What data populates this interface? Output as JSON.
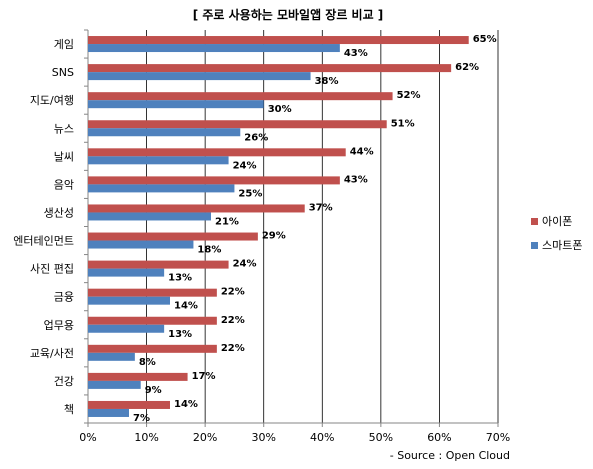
{
  "chart_data": {
    "type": "bar",
    "orientation": "horizontal",
    "title": "[ 주로 사용하는 모바일앱 장르 비교 ]",
    "source": "- Source : Open Cloud",
    "categories": [
      "게임",
      "SNS",
      "지도/여행",
      "뉴스",
      "날씨",
      "음악",
      "생산성",
      "엔터테인먼트",
      "사진 편집",
      "금융",
      "업무용",
      "교육/사전",
      "건강",
      "책"
    ],
    "series": [
      {
        "name": "아이폰",
        "color": "#c0504d",
        "values": [
          65,
          62,
          52,
          51,
          44,
          43,
          37,
          29,
          24,
          22,
          22,
          22,
          17,
          14
        ]
      },
      {
        "name": "스마트폰",
        "color": "#4f81bd",
        "values": [
          43,
          38,
          30,
          26,
          24,
          25,
          21,
          18,
          13,
          14,
          13,
          8,
          9,
          7
        ]
      }
    ],
    "value_suffix": "%",
    "xlim": [
      0,
      70
    ],
    "xticks": [
      "0%",
      "10%",
      "20%",
      "30%",
      "40%",
      "50%",
      "60%",
      "70%"
    ],
    "grid": true,
    "legend_position": "right"
  }
}
